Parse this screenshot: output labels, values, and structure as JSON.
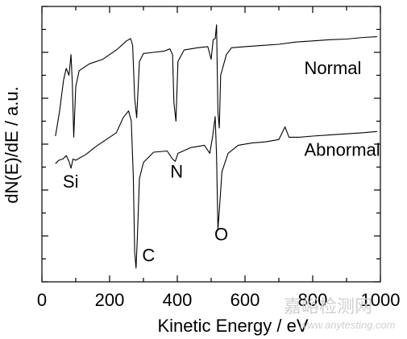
{
  "chart_data": {
    "type": "line",
    "xlabel": "Kinetic Energy / eV",
    "ylabel": "dN(E)/dE / a.u.",
    "xlim": [
      0,
      1000
    ],
    "x_ticks": [
      0,
      200,
      400,
      600,
      800,
      1000
    ],
    "y_units": "arbitrary",
    "grid": false,
    "series": [
      {
        "name": "Normal",
        "points": [
          [
            40,
            2.35
          ],
          [
            52,
            3.4
          ],
          [
            64,
            4.8
          ],
          [
            72,
            5.3
          ],
          [
            80,
            5.0
          ],
          [
            86,
            5.9
          ],
          [
            90,
            4.6
          ],
          [
            94,
            2.3
          ],
          [
            100,
            4.5
          ],
          [
            110,
            5.2
          ],
          [
            140,
            5.5
          ],
          [
            180,
            5.7
          ],
          [
            220,
            6.1
          ],
          [
            250,
            6.5
          ],
          [
            262,
            6.6
          ],
          [
            268,
            6.3
          ],
          [
            274,
            4.0
          ],
          [
            280,
            3.15
          ],
          [
            288,
            5.6
          ],
          [
            300,
            5.95
          ],
          [
            330,
            6.0
          ],
          [
            360,
            6.05
          ],
          [
            378,
            6.15
          ],
          [
            386,
            5.9
          ],
          [
            390,
            3.8
          ],
          [
            396,
            3.0
          ],
          [
            402,
            5.6
          ],
          [
            420,
            6.1
          ],
          [
            460,
            6.2
          ],
          [
            490,
            6.25
          ],
          [
            500,
            5.7
          ],
          [
            506,
            6.55
          ],
          [
            512,
            6.6
          ],
          [
            516,
            7.2
          ],
          [
            520,
            3.4
          ],
          [
            524,
            2.7
          ],
          [
            528,
            5.0
          ],
          [
            545,
            5.9
          ],
          [
            560,
            6.2
          ],
          [
            600,
            6.25
          ],
          [
            650,
            6.3
          ],
          [
            700,
            6.35
          ],
          [
            750,
            6.45
          ],
          [
            800,
            6.5
          ],
          [
            850,
            6.55
          ],
          [
            900,
            6.58
          ],
          [
            950,
            6.65
          ],
          [
            990,
            6.68
          ]
        ]
      },
      {
        "name": "Abnormal",
        "points": [
          [
            40,
            1.15
          ],
          [
            50,
            1.3
          ],
          [
            62,
            1.35
          ],
          [
            72,
            1.5
          ],
          [
            80,
            1.25
          ],
          [
            86,
            0.95
          ],
          [
            92,
            1.35
          ],
          [
            100,
            1.3
          ],
          [
            130,
            1.55
          ],
          [
            160,
            1.9
          ],
          [
            190,
            2.2
          ],
          [
            220,
            2.5
          ],
          [
            240,
            3.15
          ],
          [
            256,
            3.45
          ],
          [
            264,
            3.0
          ],
          [
            270,
            0.6
          ],
          [
            274,
            -2.7
          ],
          [
            278,
            -3.4
          ],
          [
            282,
            -2.1
          ],
          [
            288,
            0.5
          ],
          [
            300,
            1.2
          ],
          [
            330,
            1.65
          ],
          [
            370,
            1.7
          ],
          [
            386,
            1.35
          ],
          [
            394,
            1.25
          ],
          [
            402,
            1.6
          ],
          [
            440,
            1.85
          ],
          [
            480,
            1.95
          ],
          [
            496,
            1.6
          ],
          [
            504,
            2.3
          ],
          [
            512,
            3.2
          ],
          [
            516,
            1.5
          ],
          [
            520,
            -1.7
          ],
          [
            524,
            -0.9
          ],
          [
            532,
            0.8
          ],
          [
            550,
            1.6
          ],
          [
            580,
            1.95
          ],
          [
            620,
            2.05
          ],
          [
            660,
            2.1
          ],
          [
            700,
            2.2
          ],
          [
            718,
            2.75
          ],
          [
            730,
            2.3
          ],
          [
            760,
            2.3
          ],
          [
            800,
            2.35
          ],
          [
            850,
            2.4
          ],
          [
            900,
            2.45
          ],
          [
            950,
            2.5
          ],
          [
            990,
            2.55
          ]
        ]
      }
    ],
    "annotations": [
      {
        "text": "Normal",
        "x": 775,
        "y": 5.05
      },
      {
        "text": "Abnormal",
        "x": 775,
        "y": 1.5
      },
      {
        "text": "Si",
        "x": 85,
        "y": 0.1
      },
      {
        "text": "N",
        "x": 398,
        "y": 0.55
      },
      {
        "text": "C",
        "x": 315,
        "y": -3.1
      },
      {
        "text": "O",
        "x": 530,
        "y": -2.2
      }
    ]
  },
  "watermark": {
    "text_cn": "嘉峪检测网",
    "text_en": "www.anytesting.com"
  }
}
